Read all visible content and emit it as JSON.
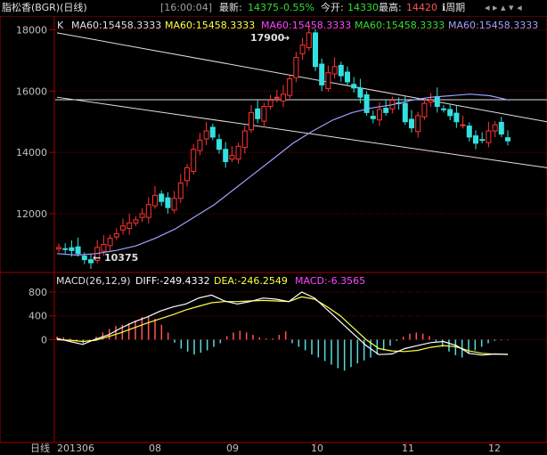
{
  "window": {
    "title": "脂松香(BGR)(日线)",
    "time": "[16:00:04]",
    "latest_label": "最新:",
    "latest": "14375",
    "change": "-0.55%",
    "open_label": "今开:",
    "open": "14330",
    "high_label": "最高:",
    "high": "14420",
    "period": "周期"
  },
  "price_header": {
    "k_label": "K",
    "ma": [
      {
        "text": "MA60:15458.3333",
        "color": "#e0e0e0"
      },
      {
        "text": "MA60:15458.3333",
        "color": "#ffff44"
      },
      {
        "text": "MA60:15458.3333",
        "color": "#ff44ff"
      },
      {
        "text": "MA60:15458.3333",
        "color": "#33dd33"
      },
      {
        "text": "MA60:15458.3333",
        "color": "#a0a0ff"
      }
    ]
  },
  "macd_header": {
    "label": "MACD(26,12,9)",
    "diff": "DIFF:-249.4332",
    "dea": "DEA:-246.2549",
    "macd": "MACD:-6.3565"
  },
  "annotations": {
    "high": "17900",
    "low": "10375"
  },
  "bottom": {
    "period_label": "日线",
    "start": "201306"
  },
  "chart_data": [
    {
      "type": "candlestick",
      "title": "",
      "ylim": [
        10200,
        18100
      ],
      "y_ticks": [
        12000,
        14000,
        16000,
        18000
      ],
      "x_ticks": [
        "08",
        "09",
        "10",
        "11",
        "12"
      ],
      "up_color": "#ff3333",
      "down_color": "#33e0e0",
      "ma_color": "#a0a0ff",
      "close_points": [
        10900,
        10850,
        10800,
        10700,
        10500,
        10400,
        10900,
        11000,
        11200,
        11350,
        11600,
        11700,
        11800,
        12000,
        12300,
        12600,
        12400,
        12200,
        12500,
        13000,
        13500,
        14100,
        14400,
        14700,
        14500,
        14100,
        13700,
        13900,
        14200,
        14700,
        15300,
        15100,
        15500,
        15700,
        15800,
        15900,
        16400,
        17100,
        17500,
        17900,
        16800,
        16200,
        16600,
        16800,
        16500,
        16300,
        16100,
        15800,
        15300,
        15100,
        15400,
        15300,
        15700,
        15600,
        15000,
        14800,
        15200,
        15600,
        15700,
        15500,
        15400,
        15200,
        15000,
        14900,
        14500,
        14300,
        14400,
        14700,
        14900,
        14600,
        14375
      ],
      "ma60_points": [
        10700,
        10650,
        10700,
        10800,
        10950,
        11200,
        11500,
        11900,
        12300,
        12800,
        13300,
        13800,
        14300,
        14700,
        15050,
        15300,
        15450,
        15550,
        15700,
        15800,
        15850,
        15900,
        15850,
        15700
      ],
      "trend_lines": {
        "upper": [
          [
            0,
            17900
          ],
          [
            1,
            15000
          ]
        ],
        "lower": [
          [
            0,
            15800
          ],
          [
            1,
            13500
          ]
        ]
      },
      "horizontal_level": 15720,
      "high_value": 17900,
      "low_value": 10375
    },
    {
      "type": "macd",
      "title": "",
      "ylim": [
        -1700,
        950
      ],
      "y_ticks": [
        0,
        400,
        800
      ],
      "diff_color": "#ffffff",
      "dea_color": "#ffff44",
      "hist_pos_color": "#ff5555",
      "hist_neg_color": "#55dddd",
      "diff": [
        20,
        -30,
        -80,
        10,
        80,
        200,
        300,
        380,
        480,
        550,
        600,
        700,
        750,
        650,
        600,
        640,
        700,
        680,
        640,
        800,
        700,
        500,
        300,
        100,
        -100,
        -250,
        -240,
        -150,
        -100,
        -50,
        -30,
        -100,
        -230,
        -260,
        -240,
        -250
      ],
      "dea": [
        0,
        -10,
        -30,
        -10,
        50,
        120,
        200,
        280,
        350,
        420,
        500,
        560,
        620,
        640,
        640,
        650,
        660,
        650,
        640,
        720,
        680,
        550,
        400,
        200,
        0,
        -150,
        -190,
        -200,
        -180,
        -130,
        -100,
        -120,
        -190,
        -230,
        -245,
        -246
      ],
      "histogram": [
        50,
        40,
        20,
        -20,
        -60,
        -30,
        50,
        120,
        180,
        230,
        250,
        280,
        320,
        380,
        400,
        350,
        250,
        120,
        -50,
        -150,
        -200,
        -250,
        -220,
        -180,
        -120,
        -60,
        60,
        120,
        150,
        120,
        80,
        40,
        20,
        20,
        80,
        140,
        -60,
        -120,
        -180,
        -250,
        -300,
        -360,
        -420,
        -480,
        -520,
        -460,
        -400,
        -350,
        -300,
        -250,
        -180,
        -100,
        -20,
        50,
        100,
        120,
        100,
        60,
        -30,
        -120,
        -200,
        -260,
        -300,
        -240,
        -180,
        -120,
        -60,
        -20,
        -10,
        -6
      ]
    }
  ]
}
